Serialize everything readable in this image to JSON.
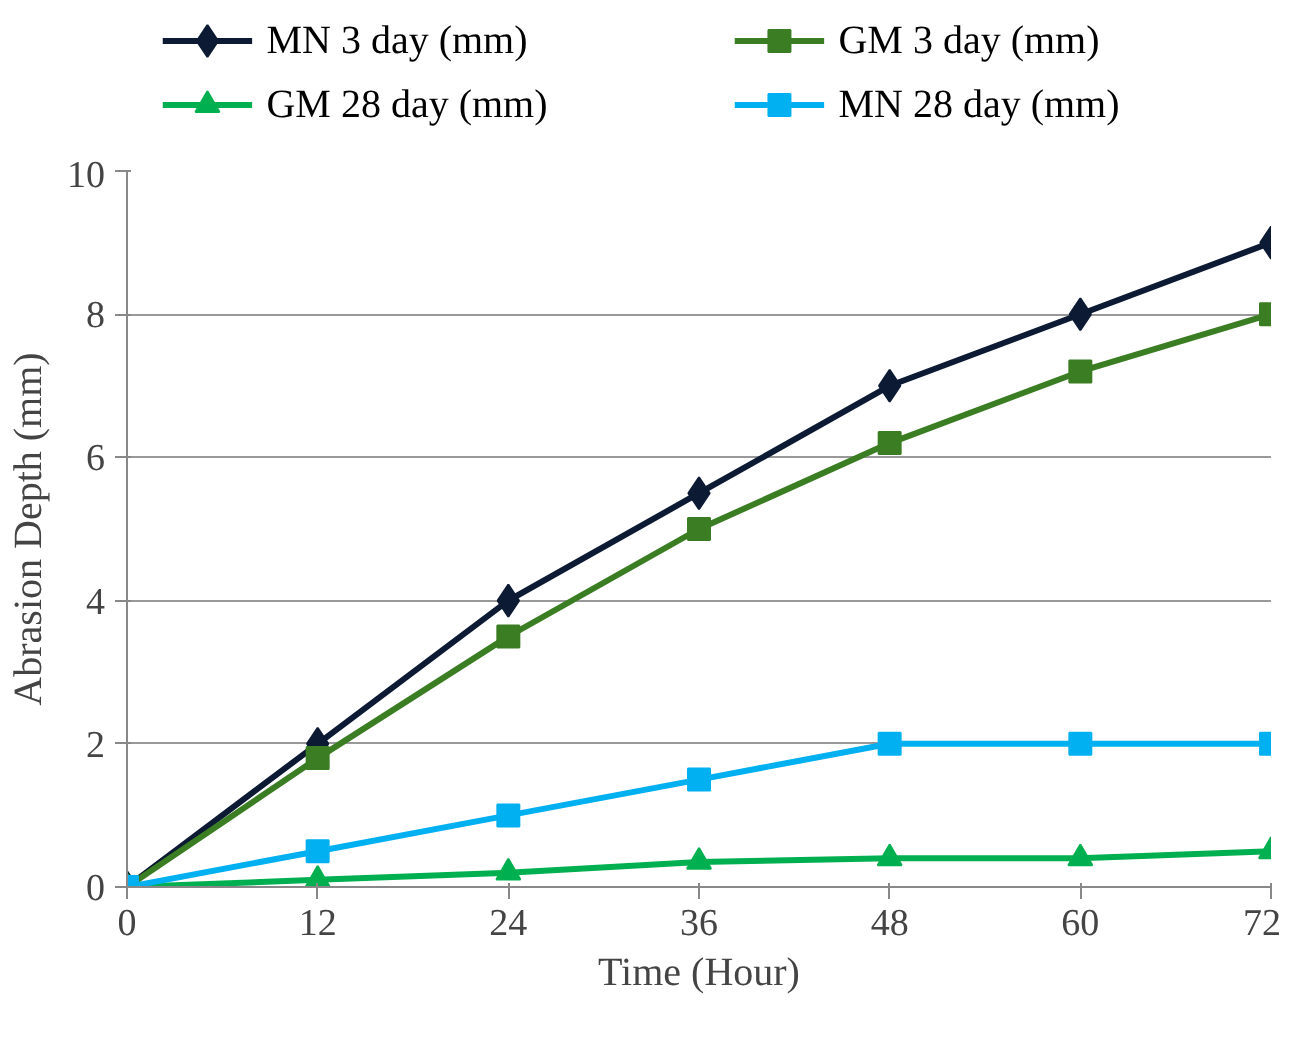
{
  "chart_data": {
    "type": "line",
    "xlabel": "Time (Hour)",
    "ylabel": "Abrasion Depth (mm)",
    "x": [
      0,
      12,
      24,
      36,
      48,
      60,
      72
    ],
    "xlim": [
      0,
      72
    ],
    "xticks": [
      0,
      12,
      24,
      36,
      48,
      60,
      72
    ],
    "ylim": [
      0,
      10
    ],
    "yticks": [
      0,
      2,
      4,
      6,
      8,
      10
    ],
    "grid": "y",
    "legend": "top",
    "series": [
      {
        "name": "MN 3 day (mm)",
        "color": "#0c1a33",
        "marker": "diamond",
        "values": [
          0,
          2,
          4,
          5.5,
          7,
          8,
          9
        ]
      },
      {
        "name": "GM 3 day (mm)",
        "color": "#3a7d22",
        "marker": "square",
        "values": [
          0,
          1.8,
          3.5,
          5,
          6.2,
          7.2,
          8
        ]
      },
      {
        "name": "GM 28 day (mm)",
        "color": "#00b050",
        "marker": "triangle",
        "values": [
          0,
          0.1,
          0.2,
          0.35,
          0.4,
          0.4,
          0.5
        ]
      },
      {
        "name": "MN 28 day (mm)",
        "color": "#00b0f0",
        "marker": "square",
        "values": [
          0,
          0.5,
          1,
          1.5,
          2,
          2,
          2
        ]
      }
    ]
  }
}
